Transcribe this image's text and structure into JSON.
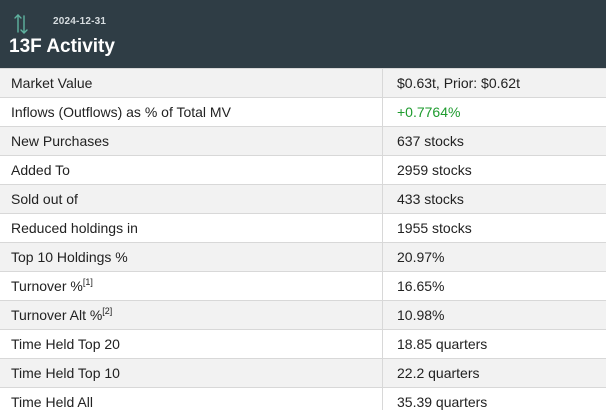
{
  "header": {
    "date": "2024-12-31",
    "title": "13F Activity",
    "icon": "up-down-arrows-icon",
    "accent_color": "#5fb3a0",
    "background_color": "#2f3d45"
  },
  "rows": [
    {
      "label": "Market Value",
      "sup": "",
      "value": "$0.63t, Prior: $0.62t",
      "value_color": ""
    },
    {
      "label": "Inflows (Outflows) as % of Total MV",
      "sup": "",
      "value": "+0.7764%",
      "value_color": "#1e9b2e"
    },
    {
      "label": "New Purchases",
      "sup": "",
      "value": "637 stocks",
      "value_color": ""
    },
    {
      "label": "Added To",
      "sup": "",
      "value": "2959 stocks",
      "value_color": ""
    },
    {
      "label": "Sold out of",
      "sup": "",
      "value": "433 stocks",
      "value_color": ""
    },
    {
      "label": "Reduced holdings in",
      "sup": "",
      "value": "1955 stocks",
      "value_color": ""
    },
    {
      "label": "Top 10 Holdings %",
      "sup": "",
      "value": "20.97%",
      "value_color": ""
    },
    {
      "label": "Turnover %",
      "sup": "[1]",
      "value": "16.65%",
      "value_color": ""
    },
    {
      "label": "Turnover Alt %",
      "sup": "[2]",
      "value": "10.98%",
      "value_color": ""
    },
    {
      "label": "Time Held Top 20",
      "sup": "",
      "value": "18.85 quarters",
      "value_color": ""
    },
    {
      "label": "Time Held Top 10",
      "sup": "",
      "value": "22.2 quarters",
      "value_color": ""
    },
    {
      "label": "Time Held All",
      "sup": "",
      "value": "35.39 quarters",
      "value_color": ""
    }
  ]
}
